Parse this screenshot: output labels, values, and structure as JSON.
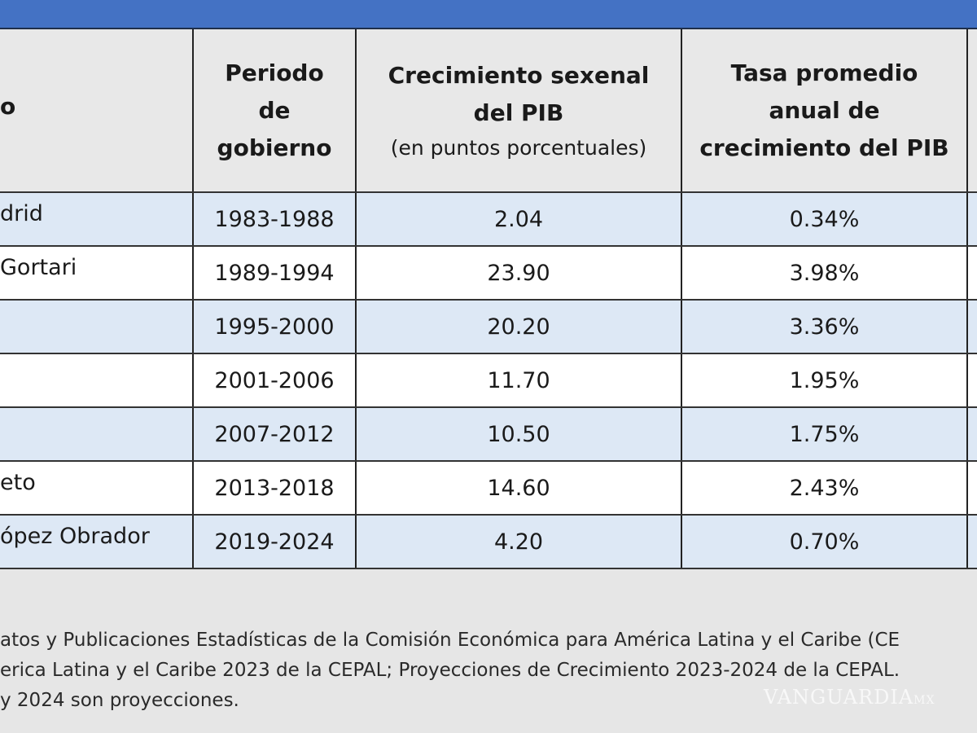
{
  "colors": {
    "banner": "#4472c4",
    "header_bg": "#e8e8e8",
    "row_alt": "#dde8f5",
    "row": "#ffffff"
  },
  "header": {
    "col0": "o",
    "col1": [
      "Periodo",
      "de",
      "gobierno"
    ],
    "col2": [
      "Crecimiento sexenal",
      "del PIB"
    ],
    "col2_sub": "(en puntos porcentuales)",
    "col3": [
      "Tasa promedio",
      "anual de",
      "crecimiento del PIB"
    ]
  },
  "rows": [
    {
      "name": "drid",
      "period": "1983-1988",
      "growth": "2.04",
      "rate": "0.34%"
    },
    {
      "name": " Gortari",
      "period": "1989-1994",
      "growth": "23.90",
      "rate": "3.98%"
    },
    {
      "name": "",
      "period": "1995-2000",
      "growth": "20.20",
      "rate": "3.36%"
    },
    {
      "name": "",
      "period": "2001-2006",
      "growth": "11.70",
      "rate": "1.95%"
    },
    {
      "name": "",
      "period": "2007-2012",
      "growth": "10.50",
      "rate": "1.75%"
    },
    {
      "name": "eto",
      "period": "2013-2018",
      "growth": "14.60",
      "rate": "2.43%"
    },
    {
      "name": "ópez Obrador",
      "period": "2019-2024",
      "growth": "4.20",
      "rate": "0.70%"
    }
  ],
  "notes": [
    "atos y Publicaciones Estadísticas de la Comisión Económica para América Latina y el Caribe (CE",
    "erica Latina y el Caribe 2023 de la CEPAL; Proyecciones de Crecimiento 2023-2024 de la CEPAL.",
    " y 2024 son proyecciones."
  ],
  "watermark": "VANGUARDIA MX"
}
